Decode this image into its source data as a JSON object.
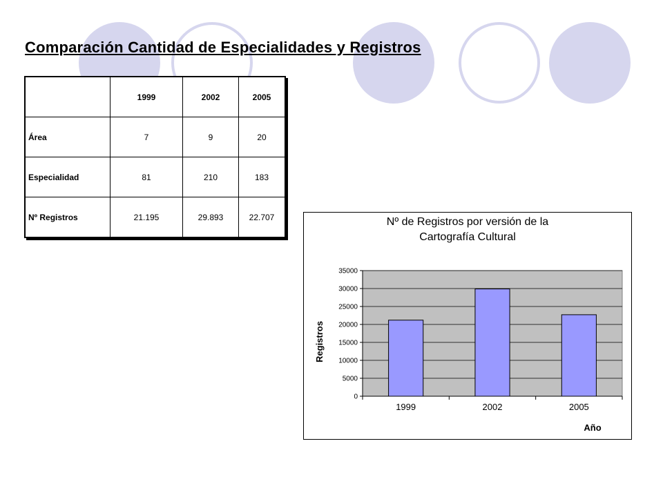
{
  "slide": {
    "title": "Comparación Cantidad de Especialidades y Registros",
    "accent_color": "#d6d6ee"
  },
  "table": {
    "columns": [
      "",
      "1999",
      "2002",
      "2005"
    ],
    "rows": [
      {
        "label": "Área",
        "values": [
          "7",
          "9",
          "20"
        ]
      },
      {
        "label": "Especialidad",
        "values": [
          "81",
          "210",
          "183"
        ]
      },
      {
        "label": "Nº Registros",
        "values": [
          "21.195",
          "29.893",
          "22.707"
        ]
      }
    ]
  },
  "chart_data": {
    "type": "bar",
    "title_line1": "Nº de Registros por versión de la",
    "title_line2": "Cartografía Cultural",
    "xlabel": "Año",
    "ylabel": "Registros",
    "categories": [
      "1999",
      "2002",
      "2005"
    ],
    "values": [
      21195,
      29893,
      22707
    ],
    "ylim": [
      0,
      35000
    ],
    "yticks": [
      0,
      5000,
      10000,
      15000,
      20000,
      25000,
      30000,
      35000
    ],
    "grid": true,
    "legend": "none",
    "bar_color": "#9999ff",
    "plot_background": "#c0c0c0"
  }
}
